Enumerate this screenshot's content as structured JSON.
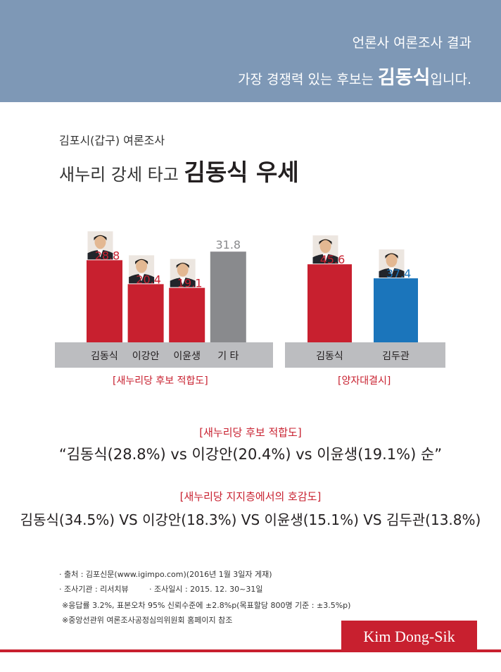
{
  "header": {
    "line1": "언론사 여론조사 결과",
    "line2_pre": "가장 경쟁력 있는 후보는 ",
    "line2_name": "김동식",
    "line2_post": "입니다."
  },
  "intro": {
    "subtitle": "김포시(갑구) 여론조사",
    "headline_pre": "새누리 강세 타고 ",
    "headline_bold": "김동식 우세"
  },
  "colors": {
    "red": "#c8202f",
    "gray": "#898a8d",
    "blue": "#1b75bb",
    "label_bg": "#bcbdc0"
  },
  "chart_data": [
    {
      "type": "bar",
      "title": "",
      "caption": "[새누리당 후보 적합도]",
      "categories": [
        "김동식",
        "이강안",
        "이윤생",
        "기 타"
      ],
      "values": [
        28.8,
        20.4,
        19.1,
        31.8
      ],
      "value_labels": [
        "28.8",
        "20.4",
        "19.1",
        "31.8"
      ],
      "colors": [
        "#c8202f",
        "#c8202f",
        "#c8202f",
        "#898a8d"
      ],
      "photos": [
        true,
        true,
        true,
        false
      ],
      "ylim": [
        0,
        35
      ]
    },
    {
      "type": "bar",
      "title": "",
      "caption": "[양자대결시]",
      "categories": [
        "김동식",
        "김두관"
      ],
      "values": [
        45.6,
        37.4
      ],
      "value_labels": [
        "45.6",
        "37.4"
      ],
      "colors": [
        "#c8202f",
        "#1b75bb"
      ],
      "photos": [
        true,
        true
      ],
      "ylim": [
        0,
        55
      ]
    }
  ],
  "section1": {
    "title": "[새누리당 후보 적합도]",
    "text": "“김동식(28.8%) vs 이강안(20.4%) vs 이윤생(19.1%) 순”"
  },
  "section2": {
    "title": "[새누리당 지지층에서의 호감도]",
    "text": "김동식(34.5%) VS 이강안(18.3%) VS 이윤생(15.1%) VS 김두관(13.8%)"
  },
  "footnotes": {
    "source": "· 출처 : 김포신문(www.igimpo.com)(2016년 1월 3일자 게재)",
    "agency": "· 조사기관 : 리서치뷰",
    "date": "· 조사일시 : 2015. 12. 30~31일",
    "note1": "※응답률 3.2%, 표본오차 95% 신뢰수준에 ±2.8%p(목표할당 800명 기준 : ±3.5%p)",
    "note2": "※중앙선관위 여론조사공정심의위원회 홈페이지 참조"
  },
  "brand": "Kim Dong-Sik"
}
